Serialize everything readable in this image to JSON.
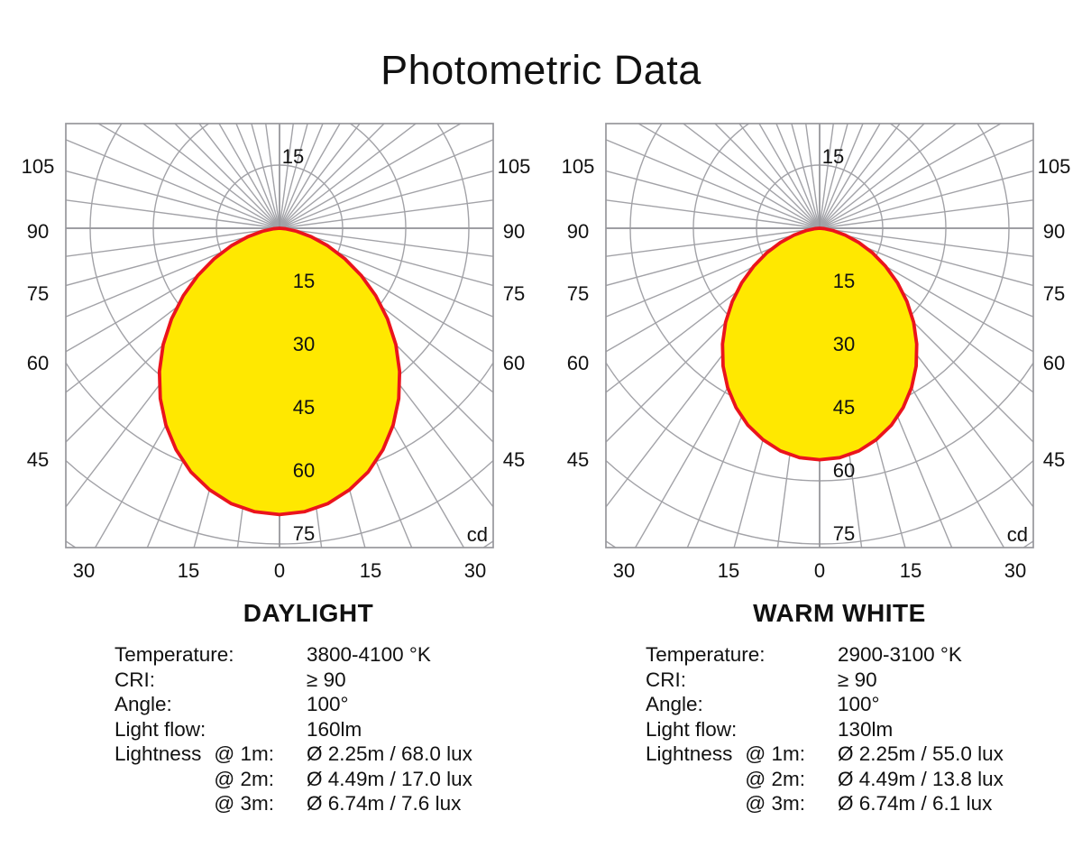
{
  "title": "Photometric Data",
  "colors": {
    "curve_fill_yellow": "#ffe800",
    "curve_stroke_red": "#eb141c",
    "grid_gray": "#a2a2a7",
    "axis_gray": "#97979c",
    "text_black": "#111111"
  },
  "chart_data": [
    {
      "type": "polar-photometric",
      "title": "DAYLIGHT",
      "radial_unit": "cd",
      "radial_ticks": [
        15,
        30,
        45,
        60,
        75
      ],
      "radial_tick_labels": [
        "15",
        "30",
        "45",
        "60",
        "75"
      ],
      "top_radial_label": "15",
      "angle_labels_side": [
        "105",
        "90",
        "75",
        "60",
        "45"
      ],
      "angle_labels_bottom": [
        "30",
        "15",
        "0",
        "15",
        "30"
      ],
      "angle_grid_step_deg": 7.5,
      "symmetric": true,
      "max_intensity_cd": 68,
      "series": [
        {
          "name": "luminous intensity",
          "angles_deg": [
            0,
            5,
            10,
            15,
            20,
            25,
            30,
            35,
            40,
            45,
            50,
            55,
            60,
            65,
            70,
            75,
            80,
            85,
            90
          ],
          "values_cd": [
            68,
            67.6,
            66.4,
            64.3,
            61.6,
            58.1,
            54.0,
            49.4,
            44.4,
            39.1,
            33.5,
            27.9,
            22.4,
            17.1,
            12.2,
            7.8,
            4.1,
            1.4,
            0
          ]
        }
      ]
    },
    {
      "type": "polar-photometric",
      "title": "WARM WHITE",
      "radial_unit": "cd",
      "radial_ticks": [
        15,
        30,
        45,
        60,
        75
      ],
      "radial_tick_labels": [
        "15",
        "30",
        "45",
        "60",
        "75"
      ],
      "top_radial_label": "15",
      "angle_labels_side": [
        "105",
        "90",
        "75",
        "60",
        "45"
      ],
      "angle_labels_bottom": [
        "30",
        "15",
        "0",
        "15",
        "30"
      ],
      "angle_grid_step_deg": 7.5,
      "symmetric": true,
      "max_intensity_cd": 55,
      "series": [
        {
          "name": "luminous intensity",
          "angles_deg": [
            0,
            5,
            10,
            15,
            20,
            25,
            30,
            35,
            40,
            45,
            50,
            55,
            60,
            65,
            70,
            75,
            80,
            85,
            90
          ],
          "values_cd": [
            55,
            54.7,
            53.7,
            52.0,
            49.8,
            47.0,
            43.7,
            40.0,
            35.9,
            31.6,
            27.1,
            22.6,
            18.1,
            13.9,
            9.9,
            6.3,
            3.3,
            1.1,
            0
          ]
        }
      ]
    }
  ],
  "specs": [
    {
      "chart": "DAYLIGHT",
      "rows": [
        {
          "name": "Temperature:",
          "at": "",
          "value": "3800-4100 °K"
        },
        {
          "name": "CRI:",
          "at": "",
          "value": "≥ 90"
        },
        {
          "name": "Angle:",
          "at": "",
          "value": "100°"
        },
        {
          "name": "Light flow:",
          "at": "",
          "value": "160lm"
        },
        {
          "name": "Lightness",
          "at": "@ 1m:",
          "value": "Ø 2.25m / 68.0 lux"
        },
        {
          "name": "",
          "at": "@ 2m:",
          "value": "Ø 4.49m / 17.0 lux"
        },
        {
          "name": "",
          "at": "@ 3m:",
          "value": "Ø 6.74m / 7.6 lux"
        }
      ]
    },
    {
      "chart": "WARM WHITE",
      "rows": [
        {
          "name": "Temperature:",
          "at": "",
          "value": "2900-3100 °K"
        },
        {
          "name": "CRI:",
          "at": "",
          "value": "≥ 90"
        },
        {
          "name": "Angle:",
          "at": "",
          "value": "100°"
        },
        {
          "name": "Light flow:",
          "at": "",
          "value": "130lm"
        },
        {
          "name": "Lightness",
          "at": "@ 1m:",
          "value": "Ø 2.25m / 55.0 lux"
        },
        {
          "name": "",
          "at": "@ 2m:",
          "value": "Ø 4.49m / 13.8 lux"
        },
        {
          "name": "",
          "at": "@ 3m:",
          "value": "Ø 6.74m / 6.1 lux"
        }
      ]
    }
  ]
}
